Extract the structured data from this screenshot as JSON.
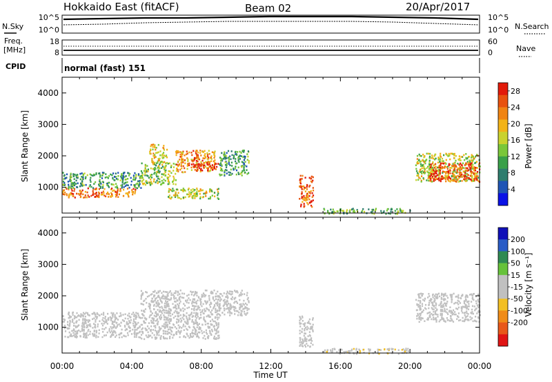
{
  "header": {
    "station": "Hokkaido East (fitACF)",
    "beam": "Beam 02",
    "date": "20/Apr/2017",
    "cpid_label": "CPID",
    "cpid_value": "normal (fast) 151"
  },
  "status_panels": {
    "nsky_label": "N.Sky",
    "nsearch_label": "N.Search",
    "freq_label": "Freq.",
    "freq_unit": "[MHz]",
    "nave_label": "Nave",
    "noise_axis": {
      "ticks": [
        "10^5",
        "10^0"
      ]
    },
    "freq_axis": {
      "ticks": [
        "18",
        "8"
      ]
    },
    "nave_axis": {
      "ticks": [
        "60",
        "0"
      ]
    }
  },
  "chart_data": [
    {
      "type": "heatmap",
      "parameter": "power",
      "ylabel": "Slant Range [km]",
      "y_ticks": [
        "1000",
        "2000",
        "3000",
        "4000"
      ],
      "ylim": [
        180,
        4500
      ],
      "colorbar": {
        "label": "Power [dB]",
        "ticks": [
          "4",
          "8",
          "12",
          "16",
          "20",
          "24",
          "28"
        ],
        "range": [
          0,
          30
        ],
        "colors": [
          "#0a12e6",
          "#1f55b5",
          "#2e7d6e",
          "#3aa049",
          "#7ac73a",
          "#c9d22e",
          "#f2b318",
          "#f08413",
          "#e8520f",
          "#e21a0a"
        ]
      },
      "regions": [
        {
          "t": [
            0.0,
            4.2
          ],
          "r": [
            700,
            1000
          ],
          "level": 24
        },
        {
          "t": [
            0.0,
            4.5
          ],
          "r": [
            1000,
            1500
          ],
          "level": 10
        },
        {
          "t": [
            4.5,
            6.5
          ],
          "r": [
            1100,
            1800
          ],
          "level": 14
        },
        {
          "t": [
            5.0,
            6.0
          ],
          "r": [
            1800,
            2400
          ],
          "level": 18
        },
        {
          "t": [
            6.5,
            8.8
          ],
          "r": [
            1500,
            2200
          ],
          "level": 22
        },
        {
          "t": [
            7.5,
            9.0
          ],
          "r": [
            1550,
            1800
          ],
          "level": 28
        },
        {
          "t": [
            6.0,
            9.0
          ],
          "r": [
            650,
            1000
          ],
          "level": 16
        },
        {
          "t": [
            9.0,
            10.7
          ],
          "r": [
            1400,
            2200
          ],
          "level": 10
        },
        {
          "t": [
            13.6,
            14.4
          ],
          "r": [
            400,
            1400
          ],
          "level": 24
        },
        {
          "t": [
            15.0,
            20.0
          ],
          "r": [
            180,
            350
          ],
          "level": 12
        },
        {
          "t": [
            20.3,
            24.0
          ],
          "r": [
            1200,
            2100
          ],
          "level": 16
        },
        {
          "t": [
            21.0,
            24.0
          ],
          "r": [
            1200,
            1800
          ],
          "level": 26
        }
      ]
    },
    {
      "type": "heatmap",
      "parameter": "velocity",
      "ylabel": "Slant Range [km]",
      "y_ticks": [
        "1000",
        "2000",
        "3000",
        "4000"
      ],
      "ylim": [
        180,
        4500
      ],
      "colorbar": {
        "label": "Velocity [m s⁻¹]",
        "ticks": [
          "200",
          "100",
          "50",
          "15",
          "-15",
          "-50",
          "-100",
          "-200"
        ],
        "range": [
          -250,
          250
        ],
        "colors": [
          "#1010b8",
          "#2a5cc6",
          "#2f8a53",
          "#66c23a",
          "#c0c0c0",
          "#c0c0c0",
          "#f2bf24",
          "#f08c18",
          "#e8581a",
          "#e01515"
        ]
      },
      "regions": [
        {
          "t": [
            0.0,
            4.5
          ],
          "r": [
            700,
            1500
          ],
          "level": 0
        },
        {
          "t": [
            4.5,
            9.0
          ],
          "r": [
            650,
            2200
          ],
          "level": 0
        },
        {
          "t": [
            9.0,
            10.7
          ],
          "r": [
            1400,
            2200
          ],
          "level": 0
        },
        {
          "t": [
            13.6,
            14.4
          ],
          "r": [
            400,
            1400
          ],
          "level": 0
        },
        {
          "t": [
            15.0,
            20.0
          ],
          "r": [
            180,
            350
          ],
          "level": -30
        },
        {
          "t": [
            20.3,
            24.0
          ],
          "r": [
            1200,
            2100
          ],
          "level": 0
        }
      ]
    }
  ],
  "x_axis": {
    "label": "Time UT",
    "xlim": [
      0,
      24
    ],
    "ticks": [
      "00:00",
      "04:00",
      "08:00",
      "12:00",
      "16:00",
      "20:00",
      "00:00"
    ]
  }
}
